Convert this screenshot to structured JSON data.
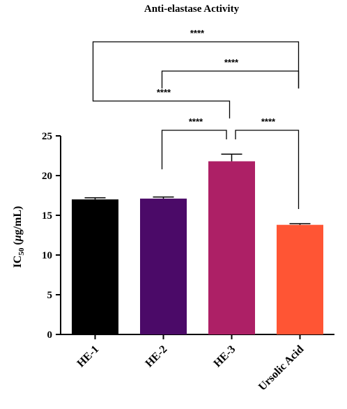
{
  "chart_data": {
    "type": "bar",
    "title": "Anti-elastase Activity",
    "ylabel_main": "IC",
    "ylabel_sub": "50",
    "ylabel_mu": "μ",
    "ylabel_rest": "g/mL)",
    "ylabel_open": " (",
    "categories": [
      "HE-1",
      "HE-2",
      "HE-3",
      "Ursolic Acid"
    ],
    "values": [
      17.0,
      17.1,
      21.8,
      13.8
    ],
    "errors": [
      0.2,
      0.2,
      0.9,
      0.15
    ],
    "colors": [
      "#000000",
      "#4b0a68",
      "#ad2066",
      "#ff5534"
    ],
    "ylim": [
      0,
      25
    ],
    "yticks": [
      0,
      5,
      10,
      15,
      20,
      25
    ],
    "grid": false,
    "comparisons": [
      {
        "from": 0,
        "to": 3,
        "label": "****"
      },
      {
        "from": 1,
        "to": 3,
        "label": "****"
      },
      {
        "from": 0,
        "to": 2,
        "label": "****"
      },
      {
        "from": 1,
        "to": 2,
        "label": "****"
      },
      {
        "from": 2,
        "to": 3,
        "label": "****"
      }
    ]
  }
}
